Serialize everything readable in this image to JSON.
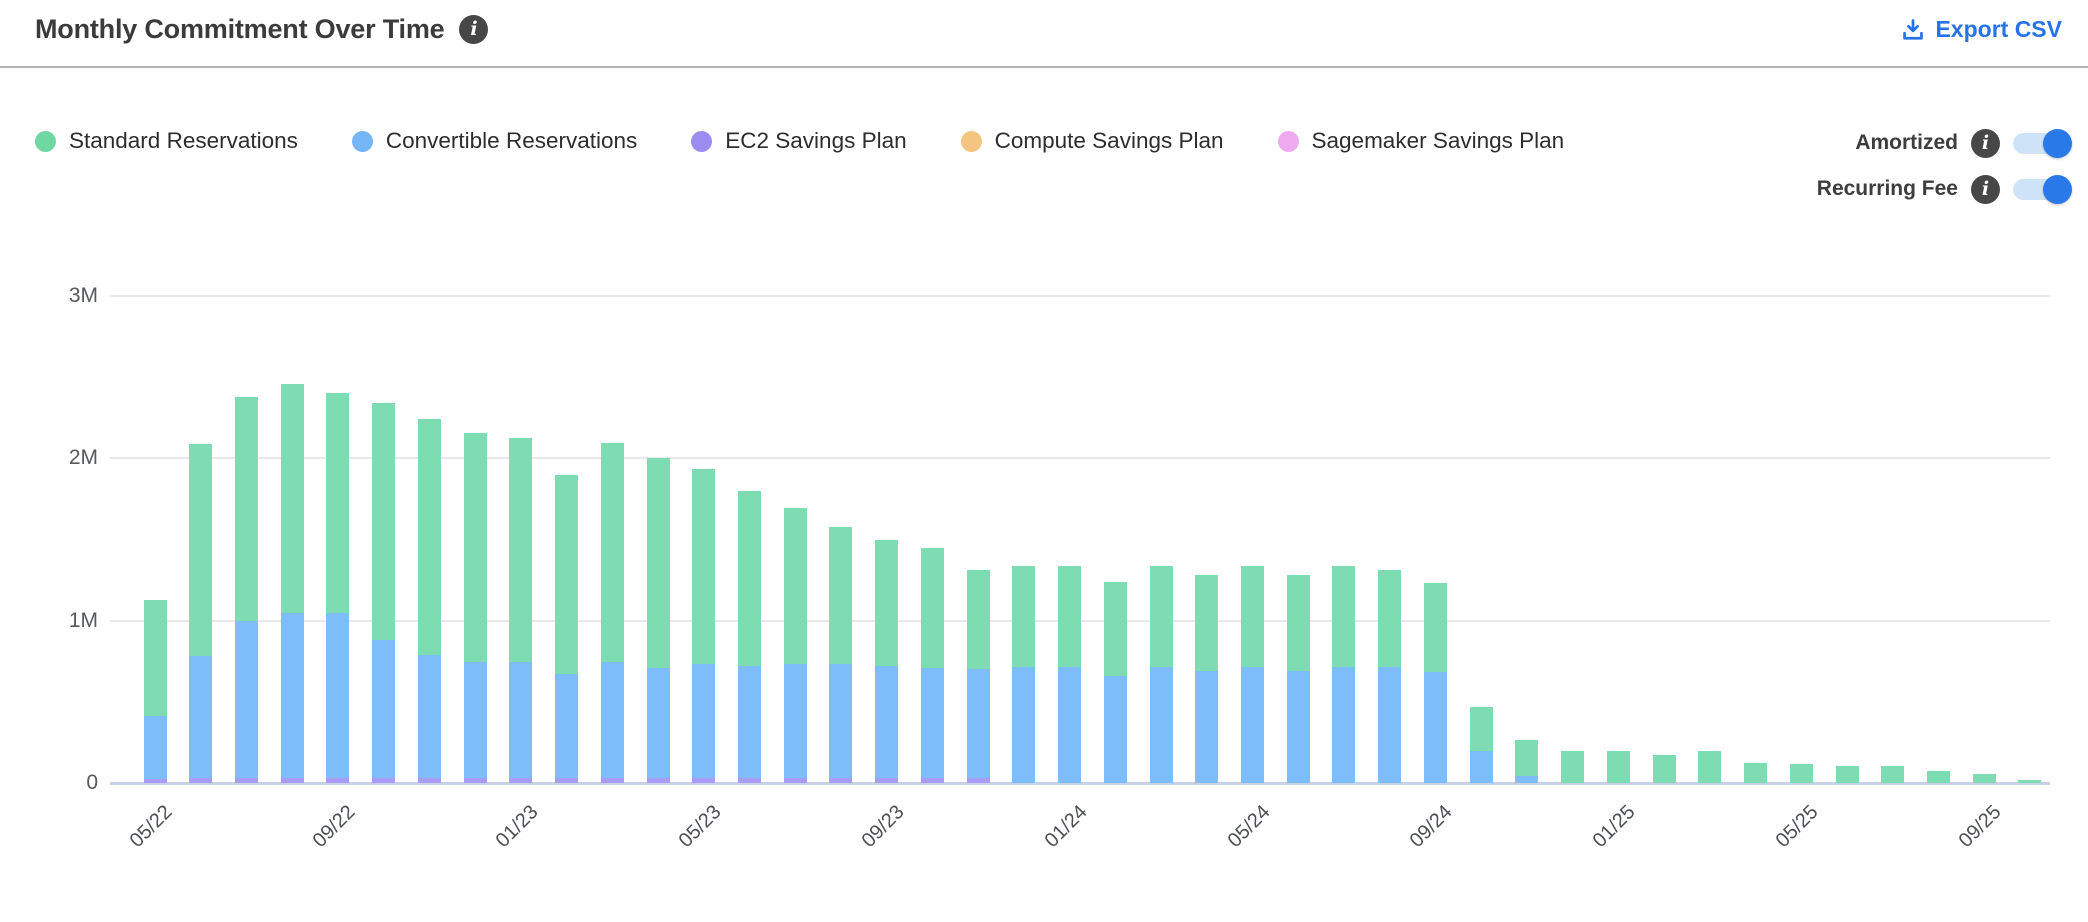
{
  "header": {
    "title": "Monthly Commitment Over Time",
    "export_label": "Export CSV",
    "export_color": "#2673e8"
  },
  "glyphs": {
    "info": "i"
  },
  "legend": {
    "items": [
      {
        "label": "Standard Reservations",
        "color": "#6fd7a2"
      },
      {
        "label": "Convertible Reservations",
        "color": "#74b6f6"
      },
      {
        "label": "EC2 Savings Plan",
        "color": "#9b8cf2"
      },
      {
        "label": "Compute Savings Plan",
        "color": "#f5c480"
      },
      {
        "label": "Sagemaker Savings Plan",
        "color": "#eeaaef"
      }
    ]
  },
  "toggles": [
    {
      "label": "Amortized",
      "state": "on"
    },
    {
      "label": "Recurring Fee",
      "state": "on"
    }
  ],
  "toggle_colors": {
    "track": "#cfe3f8",
    "knob": "#2979e8"
  },
  "chart_data": {
    "type": "bar",
    "stacked": true,
    "grid": true,
    "legend_position": "top-left",
    "title": "Monthly Commitment Over Time",
    "xlabel": "",
    "ylabel": "",
    "ylim": [
      0,
      3.1
    ],
    "y_unit": "M",
    "y_ticks": [
      {
        "value": 0,
        "label": "0"
      },
      {
        "value": 1,
        "label": "1M"
      },
      {
        "value": 2,
        "label": "2M"
      },
      {
        "value": 3,
        "label": "3M"
      }
    ],
    "categories": [
      "05/22",
      "06/22",
      "07/22",
      "08/22",
      "09/22",
      "10/22",
      "11/22",
      "12/22",
      "01/23",
      "02/23",
      "03/23",
      "04/23",
      "05/23",
      "06/23",
      "07/23",
      "08/23",
      "09/23",
      "10/23",
      "11/23",
      "12/23",
      "01/24",
      "02/24",
      "03/24",
      "04/24",
      "05/24",
      "06/24",
      "07/24",
      "08/24",
      "09/24",
      "10/24",
      "11/24",
      "12/24",
      "01/25",
      "02/25",
      "03/25",
      "04/25",
      "05/25",
      "06/25",
      "07/25",
      "08/25",
      "09/25",
      "10/25"
    ],
    "x_tick_indices": [
      0,
      4,
      8,
      12,
      16,
      20,
      24,
      28,
      32,
      36,
      40
    ],
    "series": [
      {
        "name": "Sagemaker Savings Plan",
        "color": "#eeaaef",
        "values": [
          0,
          0,
          0,
          0,
          0,
          0,
          0,
          0,
          0,
          0,
          0,
          0,
          0,
          0,
          0,
          0,
          0,
          0,
          0,
          0,
          0,
          0,
          0,
          0,
          0,
          0,
          0,
          0,
          0,
          0,
          0,
          0,
          0,
          0,
          0,
          0,
          0,
          0,
          0,
          0,
          0,
          0
        ]
      },
      {
        "name": "Compute Savings Plan",
        "color": "#f5c480",
        "values": [
          0,
          0,
          0,
          0,
          0,
          0,
          0,
          0,
          0,
          0,
          0,
          0,
          0,
          0,
          0,
          0,
          0,
          0,
          0,
          0,
          0,
          0,
          0,
          0,
          0,
          0,
          0,
          0,
          0,
          0,
          0,
          0,
          0,
          0,
          0,
          0,
          0,
          0,
          0,
          0,
          0,
          0
        ]
      },
      {
        "name": "EC2 Savings Plan",
        "color": "#a89cf4",
        "values": [
          0.025,
          0.03,
          0.03,
          0.03,
          0.03,
          0.03,
          0.03,
          0.03,
          0.03,
          0.03,
          0.03,
          0.03,
          0.03,
          0.03,
          0.03,
          0.03,
          0.03,
          0.03,
          0.03,
          0,
          0,
          0,
          0,
          0,
          0,
          0,
          0,
          0,
          0,
          0,
          0,
          0,
          0,
          0,
          0,
          0,
          0,
          0,
          0,
          0,
          0,
          0
        ]
      },
      {
        "name": "Convertible Reservations",
        "color": "#7dbefa",
        "values": [
          0.39,
          0.75,
          0.97,
          1.02,
          1.02,
          0.85,
          0.76,
          0.715,
          0.715,
          0.64,
          0.715,
          0.68,
          0.705,
          0.69,
          0.705,
          0.705,
          0.69,
          0.68,
          0.67,
          0.715,
          0.715,
          0.66,
          0.715,
          0.69,
          0.715,
          0.69,
          0.715,
          0.715,
          0.685,
          0.2,
          0.045,
          0,
          0,
          0,
          0,
          0,
          0,
          0,
          0,
          0,
          0,
          0
        ]
      },
      {
        "name": "Standard Reservations",
        "color": "#7edcb2",
        "values": [
          0.71,
          1.31,
          1.38,
          1.41,
          1.35,
          1.46,
          1.45,
          1.41,
          1.38,
          1.23,
          1.35,
          1.29,
          1.2,
          1.08,
          0.96,
          0.84,
          0.78,
          0.74,
          0.61,
          0.62,
          0.62,
          0.58,
          0.62,
          0.59,
          0.62,
          0.59,
          0.62,
          0.6,
          0.55,
          0.27,
          0.22,
          0.2,
          0.2,
          0.175,
          0.2,
          0.125,
          0.115,
          0.105,
          0.105,
          0.075,
          0.055,
          0.02
        ]
      }
    ]
  }
}
